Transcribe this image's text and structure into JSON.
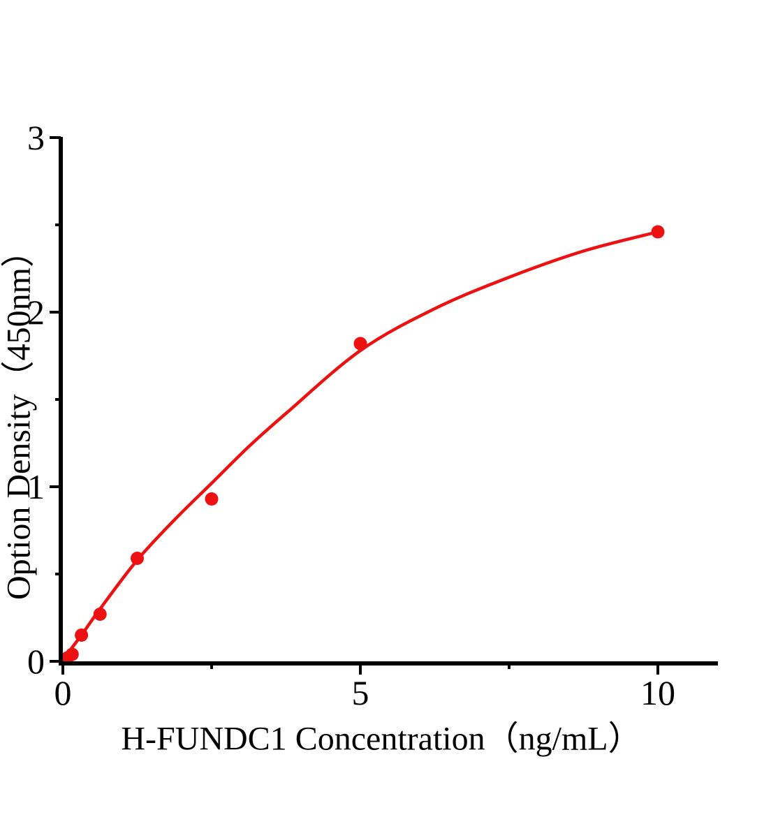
{
  "chart_data": {
    "type": "scatter",
    "title": "",
    "xlabel": "H-FUNDC1 Concentration（ng/mL）",
    "ylabel": "Option Density（450nm）",
    "xlim": [
      0,
      11
    ],
    "ylim": [
      0,
      3
    ],
    "x_ticks_major": [
      0,
      5,
      10
    ],
    "x_ticks_minor": [
      2.5,
      7.5
    ],
    "y_ticks_major": [
      0,
      1,
      2,
      3
    ],
    "y_ticks_minor": [
      0.5,
      1.5,
      2.5
    ],
    "grid": false,
    "legend": null,
    "series": [
      {
        "marker": "circle",
        "points_x": [
          0.078,
          0.156,
          0.3125,
          0.625,
          1.25,
          2.5,
          5,
          10
        ],
        "points_y": [
          0.02,
          0.04,
          0.15,
          0.27,
          0.59,
          0.93,
          1.82,
          2.46
        ]
      }
    ],
    "fit_curve": {
      "x": [
        0,
        0.3125,
        0.625,
        1.25,
        1.875,
        2.5,
        3.125,
        3.75,
        5,
        6.25,
        7.5,
        8.75,
        10
      ],
      "y": [
        0.01,
        0.15,
        0.3,
        0.58,
        0.81,
        1.02,
        1.23,
        1.42,
        1.78,
        2.02,
        2.2,
        2.35,
        2.46
      ]
    },
    "colors": {
      "curve": "#ed1111",
      "marker": "#ed1111",
      "axis": "#000000",
      "background": "#ffffff"
    }
  }
}
